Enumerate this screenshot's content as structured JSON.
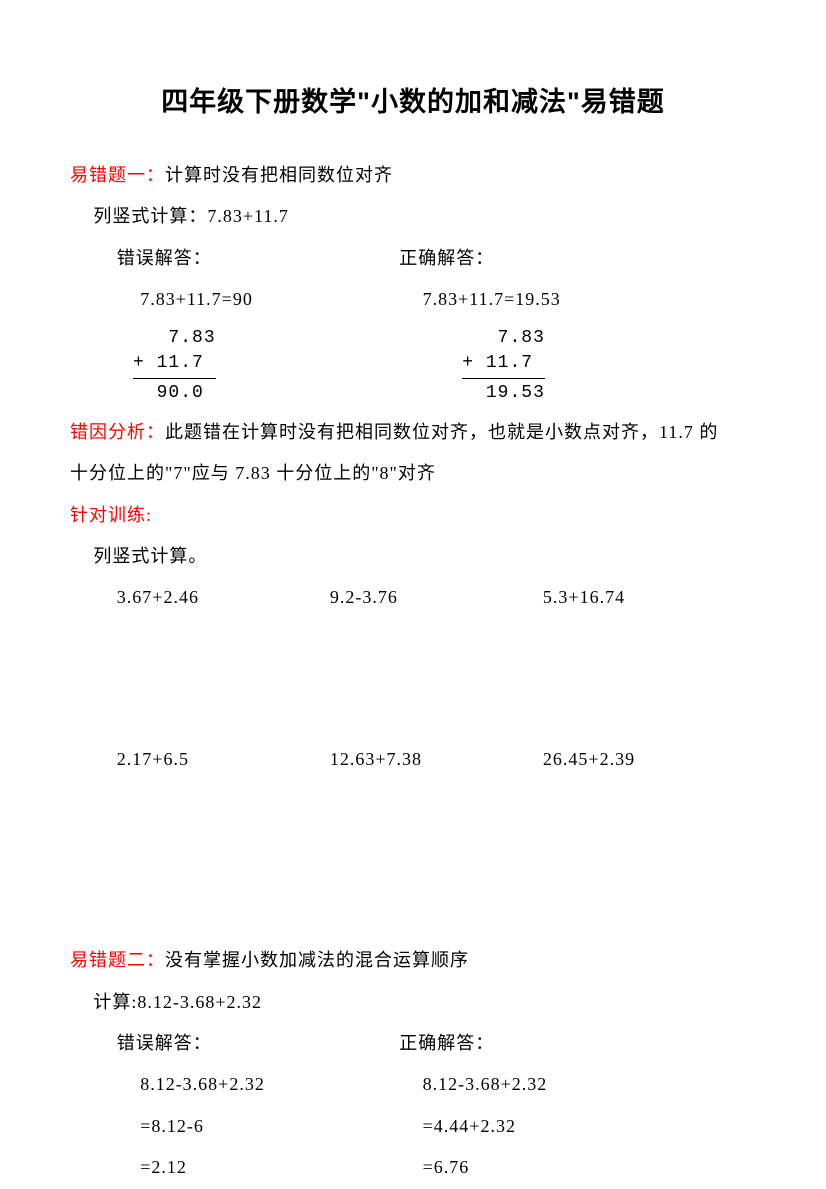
{
  "title": "四年级下册数学\"小数的加和减法\"易错题",
  "section1": {
    "heading_red": "易错题一：",
    "heading_black": "计算时没有把相同数位对齐",
    "instr": "列竖式计算：7.83+11.7",
    "wrong_label": "错误解答：",
    "right_label": "正确解答：",
    "wrong_eq": "7.83+11.7=90",
    "right_eq": "7.83+11.7=19.53",
    "wrong_calc": {
      "r1": "  7.83",
      "r2": "+ 11.7 ",
      "r3": " 90.0 "
    },
    "right_calc": {
      "r1": "  7.83",
      "r2": "+ 11.7 ",
      "r3": " 19.53"
    },
    "analysis_label": "错因分析：",
    "analysis_text1": "此题错在计算时没有把相同数位对齐，也就是小数点对齐，11.7 的",
    "analysis_text2": "十分位上的\"7\"应与 7.83 十分位上的\"8\"对齐",
    "practice_label": "针对训练:",
    "practice_instr": "列竖式计算。",
    "row1": {
      "a": "3.67+2.46",
      "b": "9.2-3.76",
      "c": "5.3+16.74"
    },
    "row2": {
      "a": "2.17+6.5",
      "b": "12.63+7.38",
      "c": "26.45+2.39"
    }
  },
  "section2": {
    "heading_red": "易错题二：",
    "heading_black": "没有掌握小数加减法的混合运算顺序",
    "instr": "计算:8.12-3.68+2.32",
    "wrong_label": "错误解答：",
    "right_label": "正确解答：",
    "wrong": {
      "l1": "8.12-3.68+2.32",
      "l2": "=8.12-6",
      "l3": "=2.12"
    },
    "right": {
      "l1": "8.12-3.68+2.32",
      "l2": "=4.44+2.32",
      "l3": "=6.76"
    }
  }
}
